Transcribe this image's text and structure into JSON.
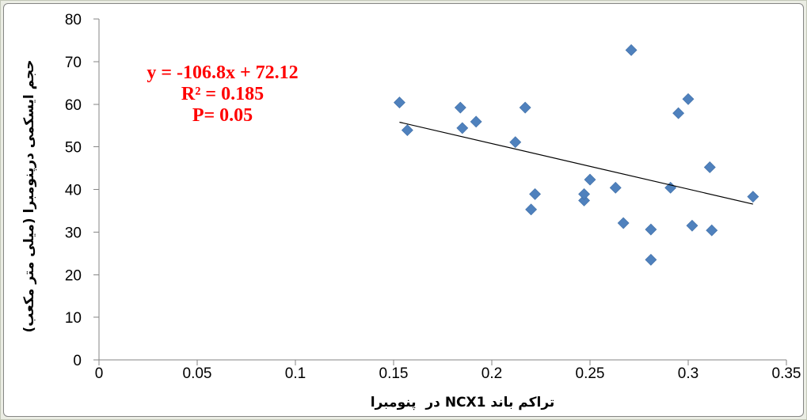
{
  "chart_data": {
    "type": "scatter",
    "xlabel": "تراکم باند NCX1 در  پنومبرا",
    "ylabel": "حجم ایسکمی درپنومبرا (میلی متر مکعب)",
    "xlim": [
      0,
      0.35
    ],
    "ylim": [
      0,
      80
    ],
    "x_ticks": [
      0,
      0.05,
      0.1,
      0.15,
      0.2,
      0.25,
      0.3,
      0.35
    ],
    "y_ticks": [
      0,
      10,
      20,
      30,
      40,
      50,
      60,
      70,
      80
    ],
    "grid": false,
    "legend": "none",
    "axis_color": "#868686",
    "series": [
      {
        "marker": "diamond",
        "color": "#4F81BD",
        "x": [
          0.153,
          0.157,
          0.184,
          0.185,
          0.192,
          0.212,
          0.217,
          0.22,
          0.222,
          0.247,
          0.247,
          0.25,
          0.263,
          0.267,
          0.271,
          0.281,
          0.281,
          0.291,
          0.295,
          0.3,
          0.302,
          0.311,
          0.312,
          0.333
        ],
        "y": [
          60.4,
          53.9,
          59.2,
          54.4,
          55.9,
          51.1,
          59.2,
          35.3,
          38.9,
          37.4,
          38.9,
          42.3,
          40.4,
          32.1,
          72.7,
          30.6,
          23.5,
          40.4,
          57.9,
          61.2,
          31.5,
          45.2,
          30.4,
          38.3
        ]
      }
    ],
    "trendline": {
      "type": "linear",
      "slope": -106.8,
      "intercept": 72.12,
      "color": "#000000"
    },
    "annotation": [
      "y = -106.8x + 72.12",
      "R² = 0.185",
      "P= 0.05"
    ],
    "annotation_color": "#FF0000"
  }
}
